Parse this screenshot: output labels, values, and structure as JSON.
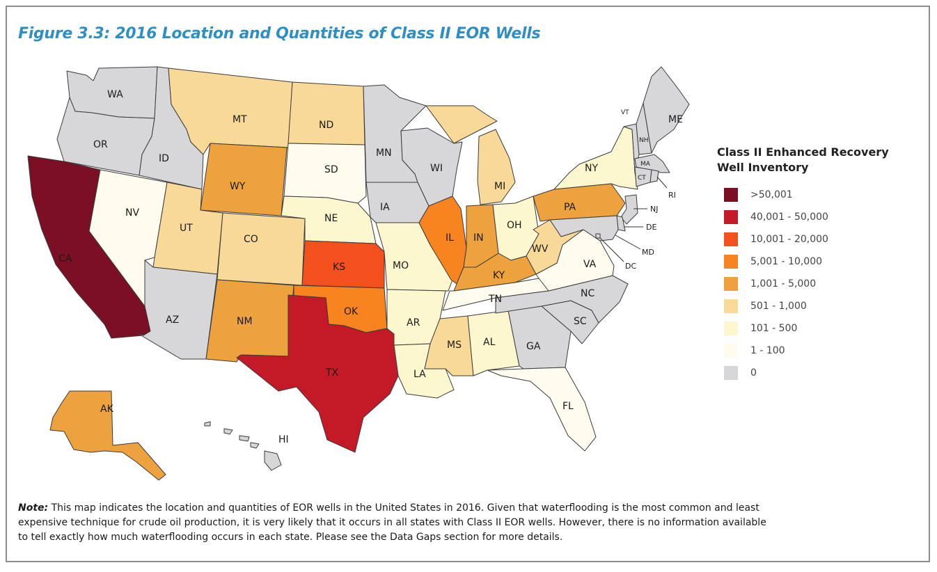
{
  "figure_title": "Figure 3.3: 2016 Location and Quantities of Class II EOR Wells",
  "legend": {
    "title_line1": "Class II Enhanced Recovery",
    "title_line2": "Well Inventory",
    "items": [
      {
        "label": ">50,001",
        "color": "#7b0f24"
      },
      {
        "label": "40,001 - 50,000",
        "color": "#c41a28"
      },
      {
        "label": "10,001 - 20,000",
        "color": "#f4501e"
      },
      {
        "label": "5,001 - 10,000",
        "color": "#f7841f"
      },
      {
        "label": "1,001 - 5,000",
        "color": "#eda23e"
      },
      {
        "label": "501 - 1,000",
        "color": "#f8d998"
      },
      {
        "label": "101 - 500",
        "color": "#fdf7cf"
      },
      {
        "label": "1 - 100",
        "color": "#fefbef"
      },
      {
        "label": "0",
        "color": "#d7d7d9"
      }
    ]
  },
  "states": {
    "WA": {
      "label": "WA",
      "category": "0"
    },
    "OR": {
      "label": "OR",
      "category": "0"
    },
    "CA": {
      "label": "CA",
      "category": ">50,001"
    },
    "ID": {
      "label": "ID",
      "category": "0"
    },
    "NV": {
      "label": "NV",
      "category": "1 - 100"
    },
    "MT": {
      "label": "MT",
      "category": "501 - 1,000"
    },
    "WY": {
      "label": "WY",
      "category": "1,001 - 5,000"
    },
    "UT": {
      "label": "UT",
      "category": "501 - 1,000"
    },
    "CO": {
      "label": "CO",
      "category": "501 - 1,000"
    },
    "AZ": {
      "label": "AZ",
      "category": "0"
    },
    "NM": {
      "label": "NM",
      "category": "1,001 - 5,000"
    },
    "ND": {
      "label": "ND",
      "category": "501 - 1,000"
    },
    "SD": {
      "label": "SD",
      "category": "1 - 100"
    },
    "NE": {
      "label": "NE",
      "category": "101 - 500"
    },
    "KS": {
      "label": "KS",
      "category": "10,001 - 20,000"
    },
    "OK": {
      "label": "OK",
      "category": "5,001 - 10,000"
    },
    "TX": {
      "label": "TX",
      "category": "40,001 - 50,000"
    },
    "MN": {
      "label": "MN",
      "category": "0"
    },
    "IA": {
      "label": "IA",
      "category": "0"
    },
    "MO": {
      "label": "MO",
      "category": "101 - 500"
    },
    "AR": {
      "label": "AR",
      "category": "101 - 500"
    },
    "LA": {
      "label": "LA",
      "category": "101 - 500"
    },
    "WI": {
      "label": "WI",
      "category": "0"
    },
    "IL": {
      "label": "IL",
      "category": "5,001 - 10,000"
    },
    "MI": {
      "label": "MI",
      "category": "501 - 1,000"
    },
    "IN": {
      "label": "IN",
      "category": "1,001 - 5,000"
    },
    "OH": {
      "label": "OH",
      "category": "101 - 500"
    },
    "KY": {
      "label": "KY",
      "category": "1,001 - 5,000"
    },
    "TN": {
      "label": "TN",
      "category": "1 - 100"
    },
    "MS": {
      "label": "MS",
      "category": "501 - 1,000"
    },
    "AL": {
      "label": "AL",
      "category": "101 - 500"
    },
    "GA": {
      "label": "GA",
      "category": "0"
    },
    "FL": {
      "label": "FL",
      "category": "1 - 100"
    },
    "SC": {
      "label": "SC",
      "category": "0"
    },
    "NC": {
      "label": "NC",
      "category": "0"
    },
    "VA": {
      "label": "VA",
      "category": "1 - 100"
    },
    "WV": {
      "label": "WV",
      "category": "501 - 1,000"
    },
    "PA": {
      "label": "PA",
      "category": "1,001 - 5,000"
    },
    "NY": {
      "label": "NY",
      "category": "101 - 500"
    },
    "VT": {
      "label": "VT",
      "category": "0"
    },
    "NH": {
      "label": "NH",
      "category": "0"
    },
    "ME": {
      "label": "ME",
      "category": "0"
    },
    "MA": {
      "label": "MA",
      "category": "0"
    },
    "CT": {
      "label": "CT",
      "category": "0"
    },
    "RI": {
      "label": "RI",
      "category": "0"
    },
    "NJ": {
      "label": "NJ",
      "category": "0"
    },
    "DE": {
      "label": "DE",
      "category": "0"
    },
    "MD": {
      "label": "MD",
      "category": "0"
    },
    "DC": {
      "label": "DC",
      "category": "0"
    },
    "AK": {
      "label": "AK",
      "category": "1,001 - 5,000"
    },
    "HI": {
      "label": "HI",
      "category": "0"
    }
  },
  "note": {
    "label": "Note:",
    "text": " This map indicates the location and quantities of EOR wells in the United States in 2016. Given that waterflooding is the most common and least expensive technique for crude oil production, it is very likely that it occurs in all states with Class II EOR wells. However, there is no information available to tell exactly how much waterflooding occurs in each state. Please see the Data Gaps section for more details."
  }
}
